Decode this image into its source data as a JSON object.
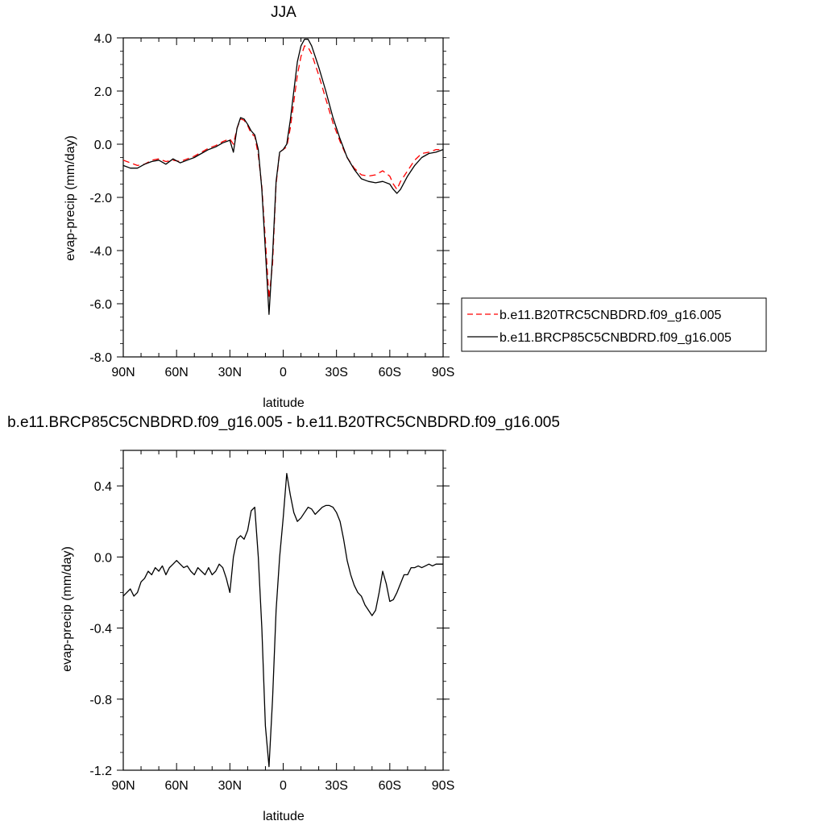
{
  "chart_data": [
    {
      "type": "line",
      "title": "JJA",
      "xlabel": "latitude",
      "ylabel": "evap-precip (mm/day)",
      "xlim": [
        90,
        -90
      ],
      "ylim": [
        -8,
        4
      ],
      "xticks": [
        90,
        60,
        30,
        0,
        -30,
        -60,
        -90
      ],
      "xtick_labels": [
        "90N",
        "60N",
        "30N",
        "0",
        "30S",
        "60S",
        "90S"
      ],
      "yticks": [
        -8,
        -6,
        -4,
        -2,
        0,
        2,
        4
      ],
      "ytick_labels": [
        "-8.0",
        "-6.0",
        "-4.0",
        "-2.0",
        "0.0",
        "2.0",
        "4.0"
      ],
      "grid": false,
      "legend": "outside-right",
      "series": [
        {
          "name": "b.e11.B20TRC5CNBDRD.f09_g16.005",
          "color": "#ff0000",
          "dash": "dashed",
          "x": [
            90,
            86,
            82,
            78,
            74,
            70,
            66,
            62,
            58,
            54,
            50,
            46,
            42,
            38,
            34,
            30,
            28,
            26,
            24,
            22,
            20,
            18,
            16,
            14,
            12,
            10,
            8,
            6,
            4,
            2,
            0,
            -2,
            -4,
            -6,
            -8,
            -10,
            -12,
            -14,
            -16,
            -18,
            -20,
            -24,
            -28,
            -32,
            -36,
            -40,
            -44,
            -48,
            -52,
            -56,
            -60,
            -62,
            -64,
            -66,
            -70,
            -74,
            -78,
            -82,
            -86,
            -90
          ],
          "y": [
            -0.6,
            -0.7,
            -0.8,
            -0.75,
            -0.6,
            -0.55,
            -0.65,
            -0.6,
            -0.65,
            -0.55,
            -0.45,
            -0.3,
            -0.15,
            -0.05,
            0.1,
            0.2,
            0.0,
            0.6,
            0.95,
            0.9,
            0.7,
            0.4,
            0.3,
            -0.4,
            -1.6,
            -3.6,
            -5.8,
            -4.5,
            -1.5,
            -0.3,
            -0.2,
            -0.1,
            0.6,
            1.6,
            2.6,
            3.3,
            3.7,
            3.65,
            3.4,
            3.0,
            2.6,
            1.7,
            0.8,
            0.1,
            -0.5,
            -0.9,
            -1.15,
            -1.2,
            -1.15,
            -1.0,
            -1.2,
            -1.5,
            -1.7,
            -1.4,
            -1.0,
            -0.6,
            -0.35,
            -0.3,
            -0.2,
            -0.2
          ]
        },
        {
          "name": "b.e11.BRCP85C5CNBDRD.f09_g16.005",
          "color": "#000000",
          "dash": "solid",
          "x": [
            90,
            86,
            82,
            78,
            74,
            70,
            66,
            62,
            58,
            54,
            50,
            46,
            42,
            38,
            34,
            30,
            28,
            26,
            24,
            22,
            20,
            18,
            16,
            14,
            12,
            10,
            8,
            6,
            4,
            2,
            0,
            -2,
            -4,
            -6,
            -8,
            -10,
            -12,
            -14,
            -16,
            -18,
            -20,
            -24,
            -28,
            -32,
            -36,
            -40,
            -44,
            -48,
            -52,
            -56,
            -60,
            -62,
            -64,
            -66,
            -70,
            -74,
            -78,
            -82,
            -86,
            -90
          ],
          "y": [
            -0.8,
            -0.9,
            -0.9,
            -0.75,
            -0.65,
            -0.6,
            -0.75,
            -0.55,
            -0.7,
            -0.6,
            -0.5,
            -0.35,
            -0.2,
            -0.1,
            0.05,
            0.15,
            -0.3,
            0.6,
            1.0,
            0.95,
            0.75,
            0.5,
            0.35,
            -0.2,
            -1.7,
            -4.0,
            -6.4,
            -4.2,
            -1.4,
            -0.3,
            -0.2,
            0.0,
            0.9,
            2.0,
            3.1,
            3.7,
            3.95,
            3.95,
            3.7,
            3.3,
            2.9,
            2.0,
            1.0,
            0.2,
            -0.5,
            -0.95,
            -1.3,
            -1.4,
            -1.45,
            -1.4,
            -1.5,
            -1.7,
            -1.85,
            -1.7,
            -1.2,
            -0.8,
            -0.5,
            -0.35,
            -0.3,
            -0.2
          ]
        }
      ]
    },
    {
      "type": "line",
      "title": "b.e11.BRCP85C5CNBDRD.f09_g16.005 - b.e11.B20TRC5CNBDRD.f09_g16.005",
      "xlabel": "latitude",
      "ylabel": "evap-precip (mm/day)",
      "xlim": [
        90,
        -90
      ],
      "ylim": [
        -1.2,
        0.6
      ],
      "xticks": [
        90,
        60,
        30,
        0,
        -30,
        -60,
        -90
      ],
      "xtick_labels": [
        "90N",
        "60N",
        "30N",
        "0",
        "30S",
        "60S",
        "90S"
      ],
      "yticks": [
        -1.2,
        -0.8,
        -0.4,
        0.0,
        0.4
      ],
      "ytick_labels": [
        "-1.2",
        "-0.8",
        "-0.4",
        "0.0",
        "0.4"
      ],
      "grid": false,
      "series": [
        {
          "color": "#000000",
          "dash": "solid",
          "x": [
            90,
            88,
            86,
            84,
            82,
            80,
            78,
            76,
            74,
            72,
            70,
            68,
            66,
            64,
            62,
            60,
            58,
            56,
            54,
            52,
            50,
            48,
            46,
            44,
            42,
            40,
            38,
            36,
            34,
            32,
            30,
            29,
            28,
            26,
            24,
            22,
            20,
            18,
            16,
            14,
            12,
            10,
            8,
            6,
            4,
            2,
            0,
            -2,
            -4,
            -6,
            -8,
            -10,
            -12,
            -14,
            -16,
            -18,
            -20,
            -22,
            -24,
            -26,
            -28,
            -30,
            -32,
            -34,
            -36,
            -38,
            -40,
            -42,
            -44,
            -46,
            -48,
            -50,
            -52,
            -54,
            -56,
            -58,
            -60,
            -62,
            -64,
            -66,
            -68,
            -70,
            -72,
            -74,
            -76,
            -78,
            -80,
            -82,
            -84,
            -86,
            -88,
            -90
          ],
          "y": [
            -0.22,
            -0.2,
            -0.18,
            -0.22,
            -0.2,
            -0.14,
            -0.12,
            -0.08,
            -0.1,
            -0.06,
            -0.08,
            -0.05,
            -0.1,
            -0.06,
            -0.04,
            -0.02,
            -0.04,
            -0.06,
            -0.05,
            -0.08,
            -0.1,
            -0.06,
            -0.08,
            -0.1,
            -0.06,
            -0.1,
            -0.08,
            -0.04,
            -0.06,
            -0.12,
            -0.2,
            -0.1,
            0.0,
            0.1,
            0.12,
            0.1,
            0.15,
            0.26,
            0.28,
            0.0,
            -0.4,
            -0.95,
            -1.18,
            -0.8,
            -0.3,
            0.0,
            0.22,
            0.47,
            0.35,
            0.25,
            0.2,
            0.22,
            0.25,
            0.28,
            0.27,
            0.24,
            0.26,
            0.28,
            0.29,
            0.29,
            0.28,
            0.25,
            0.2,
            0.1,
            -0.02,
            -0.1,
            -0.16,
            -0.2,
            -0.22,
            -0.27,
            -0.3,
            -0.33,
            -0.3,
            -0.2,
            -0.08,
            -0.15,
            -0.25,
            -0.24,
            -0.2,
            -0.15,
            -0.1,
            -0.1,
            -0.06,
            -0.06,
            -0.05,
            -0.06,
            -0.05,
            -0.04,
            -0.05,
            -0.04,
            -0.04,
            -0.04
          ]
        }
      ]
    }
  ]
}
